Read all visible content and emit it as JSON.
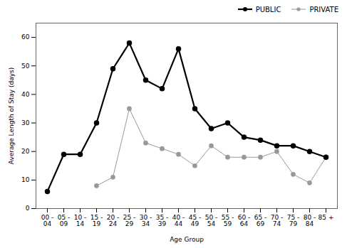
{
  "chart_data": {
    "type": "line",
    "xlabel": "Age Group",
    "ylabel": "Average Length of Stay (days)",
    "categories": [
      "00 -\n04",
      "05 -\n09",
      "10 -\n14",
      "15 -\n19",
      "20 -\n24",
      "25 -\n29",
      "30 -\n34",
      "35 -\n39",
      "40 -\n44",
      "45 -\n49",
      "50 -\n54",
      "55 -\n59",
      "60 -\n64",
      "65 -\n69",
      "70 -\n74",
      "75 -\n79",
      "80 -\n84",
      "85 +"
    ],
    "series": [
      {
        "name": "PUBLIC",
        "color": "#000000",
        "marker": "circle",
        "values": [
          6,
          19,
          19,
          30,
          49,
          58,
          45,
          42,
          56,
          35,
          28,
          30,
          25,
          24,
          22,
          22,
          20,
          18
        ]
      },
      {
        "name": "PRIVATE",
        "color": "#999999",
        "marker": "circle",
        "values": [
          null,
          null,
          null,
          8,
          11,
          35,
          23,
          21,
          19,
          15,
          22,
          18,
          18,
          18,
          20,
          12,
          9,
          18
        ]
      }
    ],
    "ylim": [
      0,
      65
    ],
    "yticks": [
      0,
      10,
      20,
      30,
      40,
      50,
      60
    ],
    "grid": false,
    "legend": "upper right"
  }
}
